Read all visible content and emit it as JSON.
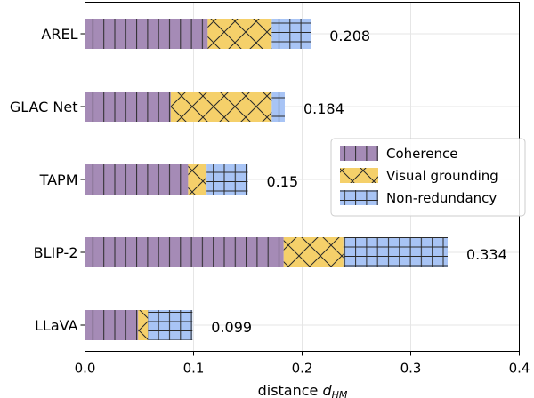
{
  "chart_data": {
    "type": "bar",
    "orientation": "horizontal",
    "stacked": true,
    "categories": [
      "AREL",
      "GLAC Net",
      "TAPM",
      "BLIP-2",
      "LLaVA"
    ],
    "series": [
      {
        "name": "Coherence",
        "values": [
          0.113,
          0.079,
          0.095,
          0.183,
          0.049
        ],
        "color": "#a58bb6",
        "hatch": "vertical"
      },
      {
        "name": "Visual grounding",
        "values": [
          0.059,
          0.093,
          0.017,
          0.055,
          0.009
        ],
        "color": "#f5d06a",
        "hatch": "cross"
      },
      {
        "name": "Non-redundancy",
        "values": [
          0.036,
          0.012,
          0.038,
          0.096,
          0.041
        ],
        "color": "#a8c4f5",
        "hatch": "grid"
      }
    ],
    "totals": [
      "0.208",
      "0.184",
      "0.15",
      "0.334",
      "0.099"
    ],
    "xlabel": "distance d_HM",
    "xlabel_main": "distance ",
    "xlabel_var": "d",
    "xlabel_sub": "HM",
    "xlim": [
      0,
      0.4
    ],
    "xticks": [
      0.0,
      0.1,
      0.2,
      0.3,
      0.4
    ],
    "xtick_labels": [
      "0.0",
      "0.1",
      "0.2",
      "0.3",
      "0.4"
    ],
    "grid": true,
    "legend_position": "center-right"
  }
}
